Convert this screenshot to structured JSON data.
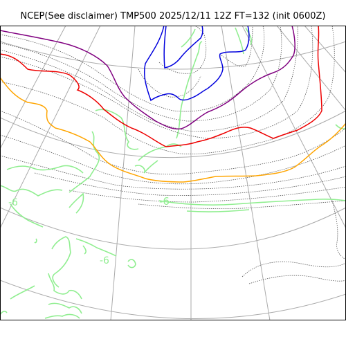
{
  "title": "NCEP(See disclaimer) TMP500 2025/12/11 12Z FT=132 (init 0600Z)",
  "contour_labels": [
    "-6",
    "-6",
    "-6"
  ],
  "colors": {
    "graticule": "#aaaaaa",
    "isotherm_dotted": "#555555",
    "coastline": "#90ee90",
    "contour_blue": "#0000dd",
    "contour_purple": "#800080",
    "contour_red": "#ee0000",
    "contour_orange": "#ffa500"
  }
}
